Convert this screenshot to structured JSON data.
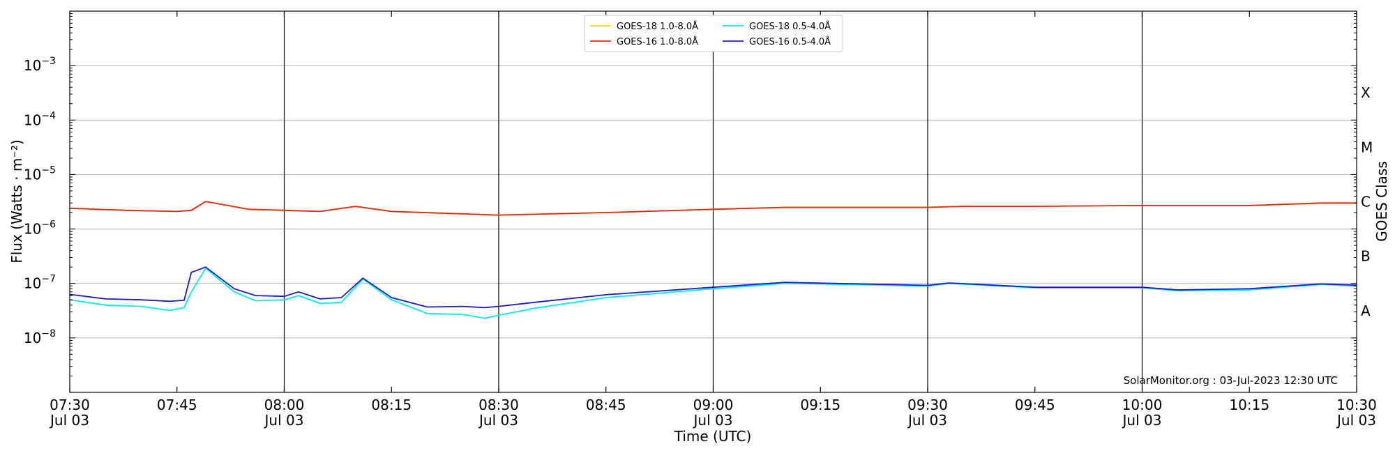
{
  "chart_data": {
    "type": "line",
    "xlabel": "Time (UTC)",
    "ylabel": "Flux (Watts · m⁻²)",
    "ylabel_right": "GOES Class",
    "yscale": "log",
    "ylim": [
      1e-09,
      0.01
    ],
    "xlim": [
      "07:30",
      "10:30"
    ],
    "watermark": "SolarMonitor.org : 03-Jul-2023 12:30 UTC",
    "legend_placement": "top-center",
    "grid": {
      "horizontal": true,
      "vertical_at_half_hours": true
    },
    "x_ticks": [
      {
        "time": "07:30",
        "label": "07:30",
        "date": "Jul 03"
      },
      {
        "time": "07:45",
        "label": "07:45",
        "date": ""
      },
      {
        "time": "08:00",
        "label": "08:00",
        "date": "Jul 03"
      },
      {
        "time": "08:15",
        "label": "08:15",
        "date": ""
      },
      {
        "time": "08:30",
        "label": "08:30",
        "date": "Jul 03"
      },
      {
        "time": "08:45",
        "label": "08:45",
        "date": ""
      },
      {
        "time": "09:00",
        "label": "09:00",
        "date": "Jul 03"
      },
      {
        "time": "09:15",
        "label": "09:15",
        "date": ""
      },
      {
        "time": "09:30",
        "label": "09:30",
        "date": "Jul 03"
      },
      {
        "time": "09:45",
        "label": "09:45",
        "date": ""
      },
      {
        "time": "10:00",
        "label": "10:00",
        "date": "Jul 03"
      },
      {
        "time": "10:15",
        "label": "10:15",
        "date": ""
      },
      {
        "time": "10:30",
        "label": "10:30",
        "date": "Jul 03"
      }
    ],
    "vertical_lines": [
      "08:00",
      "08:30",
      "09:00",
      "09:30",
      "10:00"
    ],
    "y_ticks": [
      {
        "value": 1e-08,
        "base": "10",
        "exp": "−8"
      },
      {
        "value": 1e-07,
        "base": "10",
        "exp": "−7"
      },
      {
        "value": 1e-06,
        "base": "10",
        "exp": "−6"
      },
      {
        "value": 1e-05,
        "base": "10",
        "exp": "−5"
      },
      {
        "value": 0.0001,
        "base": "10",
        "exp": "−4"
      },
      {
        "value": 0.001,
        "base": "10",
        "exp": "−3"
      }
    ],
    "goes_classes": [
      {
        "label": "A",
        "value": 3.16e-08
      },
      {
        "label": "B",
        "value": 3.16e-07
      },
      {
        "label": "C",
        "value": 3.16e-06
      },
      {
        "label": "M",
        "value": 3.16e-05
      },
      {
        "label": "X",
        "value": 0.000316
      }
    ],
    "series": [
      {
        "name": "GOES-18 1.0-8.0Å",
        "color": "#ffd700",
        "x": [
          "07:30",
          "07:38",
          "07:45",
          "07:47",
          "07:49",
          "07:55",
          "08:00",
          "08:05",
          "08:10",
          "08:15",
          "08:30",
          "08:45",
          "09:00",
          "09:10",
          "09:30",
          "09:35",
          "09:45",
          "10:00",
          "10:15",
          "10:25",
          "10:30"
        ],
        "values": [
          2.4e-06,
          2.2e-06,
          2.1e-06,
          2.2e-06,
          3.2e-06,
          2.3e-06,
          2.2e-06,
          2.1e-06,
          2.6e-06,
          2.1e-06,
          1.8e-06,
          2e-06,
          2.3e-06,
          2.5e-06,
          2.5e-06,
          2.6e-06,
          2.6e-06,
          2.7e-06,
          2.7e-06,
          3e-06,
          3e-06
        ]
      },
      {
        "name": "GOES-16 1.0-8.0Å",
        "color": "#e8250c",
        "x": [
          "07:30",
          "07:38",
          "07:45",
          "07:47",
          "07:49",
          "07:55",
          "08:00",
          "08:05",
          "08:10",
          "08:15",
          "08:30",
          "08:45",
          "09:00",
          "09:10",
          "09:30",
          "09:35",
          "09:45",
          "10:00",
          "10:15",
          "10:25",
          "10:30"
        ],
        "values": [
          2.4e-06,
          2.2e-06,
          2.1e-06,
          2.2e-06,
          3.2e-06,
          2.3e-06,
          2.2e-06,
          2.1e-06,
          2.6e-06,
          2.1e-06,
          1.8e-06,
          2e-06,
          2.3e-06,
          2.5e-06,
          2.5e-06,
          2.6e-06,
          2.6e-06,
          2.7e-06,
          2.7e-06,
          3e-06,
          3e-06
        ]
      },
      {
        "name": "GOES-18 0.5-4.0Å",
        "color": "#00eeee",
        "x": [
          "07:30",
          "07:35",
          "07:40",
          "07:44",
          "07:46",
          "07:47",
          "07:49",
          "07:53",
          "07:56",
          "08:00",
          "08:02",
          "08:05",
          "08:08",
          "08:11",
          "08:15",
          "08:20",
          "08:25",
          "08:28",
          "08:30",
          "08:35",
          "08:45",
          "09:00",
          "09:10",
          "09:30",
          "09:33",
          "09:45",
          "10:00",
          "10:05",
          "10:15",
          "10:25",
          "10:30"
        ],
        "values": [
          5e-08,
          4e-08,
          3.8e-08,
          3.2e-08,
          3.6e-08,
          7e-08,
          1.9e-07,
          7e-08,
          4.8e-08,
          5e-08,
          6e-08,
          4.3e-08,
          4.5e-08,
          1.2e-07,
          5e-08,
          2.8e-08,
          2.7e-08,
          2.3e-08,
          2.6e-08,
          3.5e-08,
          5.5e-08,
          8e-08,
          1e-07,
          9e-08,
          1e-07,
          8.3e-08,
          8.3e-08,
          7.3e-08,
          7.6e-08,
          9.6e-08,
          9e-08
        ]
      },
      {
        "name": "GOES-16 0.5-4.0Å",
        "color": "#1a1acc",
        "x": [
          "07:30",
          "07:35",
          "07:40",
          "07:44",
          "07:46",
          "07:47",
          "07:49",
          "07:53",
          "07:56",
          "08:00",
          "08:02",
          "08:05",
          "08:08",
          "08:11",
          "08:15",
          "08:20",
          "08:25",
          "08:28",
          "08:30",
          "08:35",
          "08:45",
          "09:00",
          "09:10",
          "09:30",
          "09:33",
          "09:45",
          "10:00",
          "10:05",
          "10:15",
          "10:25",
          "10:30"
        ],
        "values": [
          6.3e-08,
          5.2e-08,
          5e-08,
          4.7e-08,
          4.9e-08,
          1.6e-07,
          2e-07,
          8e-08,
          6e-08,
          5.8e-08,
          7e-08,
          5.2e-08,
          5.5e-08,
          1.25e-07,
          5.5e-08,
          3.7e-08,
          3.8e-08,
          3.6e-08,
          3.8e-08,
          4.5e-08,
          6.2e-08,
          8.5e-08,
          1.05e-07,
          9.2e-08,
          1.02e-07,
          8.5e-08,
          8.5e-08,
          7.6e-08,
          8e-08,
          9.8e-08,
          9.3e-08
        ]
      }
    ]
  }
}
